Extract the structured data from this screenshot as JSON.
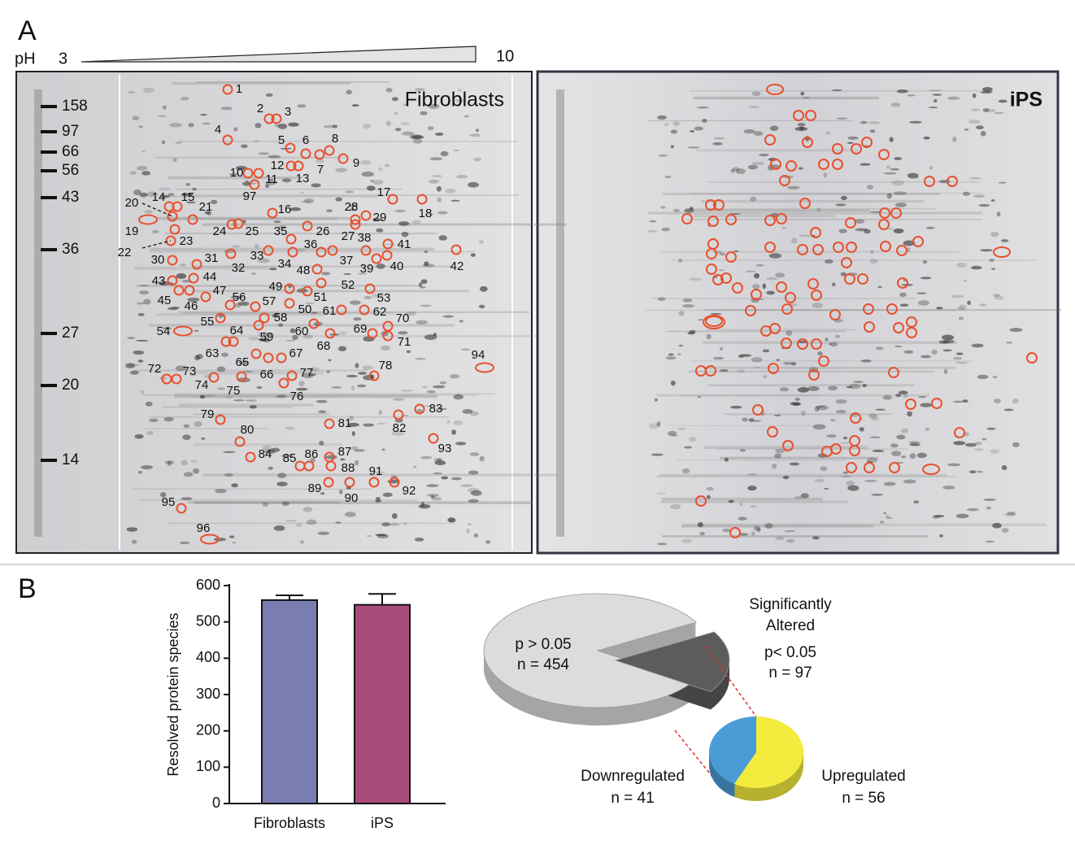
{
  "panel_a": {
    "label": "A",
    "ph_label": "pH",
    "ph_min": "3",
    "ph_max": "10",
    "mw_markers": [
      "158",
      "97",
      "66",
      "56",
      "43",
      "36",
      "27",
      "20",
      "14"
    ],
    "fibroblasts_title": "Fibroblasts",
    "ips_title": "iPS",
    "spot_labels": [
      "1",
      "2",
      "3",
      "4",
      "5",
      "6",
      "7",
      "8",
      "9",
      "10",
      "11",
      "12",
      "13",
      "14",
      "15",
      "16",
      "17",
      "18",
      "19",
      "20",
      "21",
      "22",
      "23",
      "24",
      "25",
      "26",
      "27",
      "28",
      "29",
      "30",
      "31",
      "32",
      "33",
      "34",
      "35",
      "36",
      "37",
      "38",
      "39",
      "40",
      "41",
      "42",
      "43",
      "44",
      "45",
      "46",
      "47",
      "48",
      "49",
      "50",
      "51",
      "52",
      "53",
      "54",
      "55",
      "56",
      "57",
      "58",
      "59",
      "60",
      "61",
      "62",
      "63",
      "64",
      "65",
      "66",
      "67",
      "68",
      "69",
      "70",
      "71",
      "72",
      "73",
      "74",
      "75",
      "76",
      "77",
      "78",
      "79",
      "80",
      "81",
      "82",
      "83",
      "84",
      "85",
      "86",
      "87",
      "88",
      "89",
      "90",
      "91",
      "92",
      "93",
      "94",
      "95",
      "96",
      "97"
    ]
  },
  "panel_b": {
    "label": "B"
  },
  "chart_data": [
    {
      "type": "bar",
      "ylabel": "Resolved protein species",
      "categories": [
        "Fibroblasts",
        "iPS"
      ],
      "values": [
        560,
        547
      ],
      "errors": [
        13,
        30
      ],
      "colors": [
        "#7a7db2",
        "#a94b7b"
      ],
      "ylim": [
        0,
        600
      ],
      "yticks": [
        0,
        100,
        200,
        300,
        400,
        500,
        600
      ]
    },
    {
      "type": "pie",
      "categories": [
        "p > 0.05",
        "p< 0.05"
      ],
      "values": [
        454,
        97
      ],
      "value_labels": [
        "n = 454",
        "n = 97"
      ],
      "colors": [
        "#dcdcdc",
        "#5c5c5c"
      ],
      "annotation": [
        "Significantly",
        "Altered"
      ]
    },
    {
      "type": "pie",
      "categories": [
        "Downregulated",
        "Upregulated"
      ],
      "values": [
        41,
        56
      ],
      "value_labels": [
        "n = 41",
        "n = 56"
      ],
      "colors": [
        "#4b9cd6",
        "#f3ec3e"
      ]
    }
  ]
}
